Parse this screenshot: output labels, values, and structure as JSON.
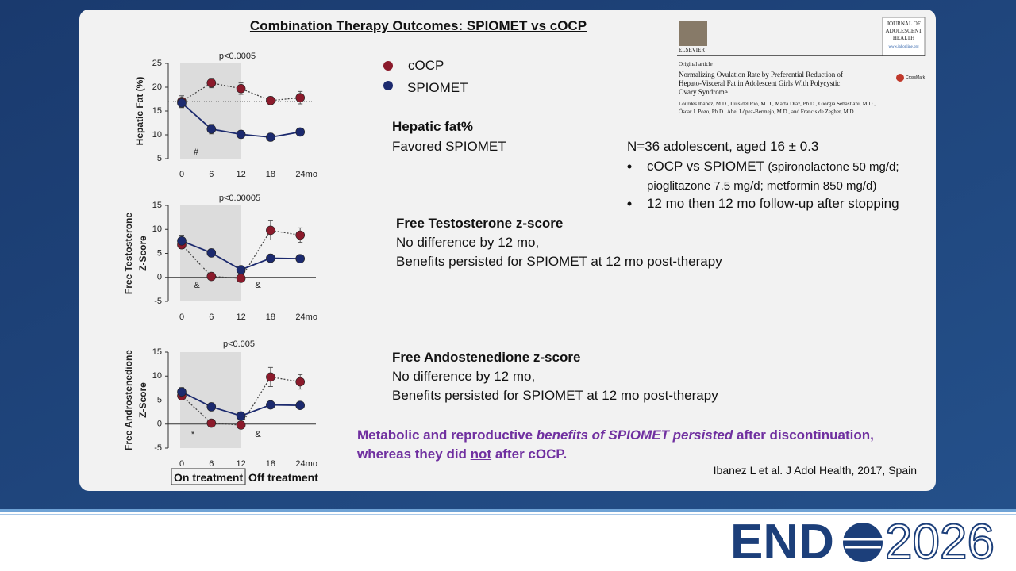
{
  "slide": {
    "title": "Combination Therapy Outcomes: SPIOMET vs cOCP",
    "hepatic": {
      "heading": "Hepatic fat%",
      "lines": [
        "Favored SPIOMET"
      ]
    },
    "testosterone": {
      "heading": "Free Testosterone z-score",
      "lines": [
        "No difference by 12 mo,",
        "Benefits persisted for SPIOMET at 12 mo post-therapy"
      ]
    },
    "androstenedione": {
      "heading": "Free Andostenedione z-score",
      "lines": [
        "No difference by 12 mo,",
        "Benefits persisted for SPIOMET at 12 mo post-therapy"
      ]
    },
    "study": {
      "intro": "N=36 adolescent, aged 16 ± 0.3",
      "bullets": [
        {
          "lead": "cOCP vs SPIOMET ",
          "detail": "(spironolactone 50 mg/d; pioglitazone 7.5 mg/d; metformin 850 mg/d)"
        },
        {
          "lead": "12 mo then 12 mo follow-up after stopping",
          "detail": ""
        }
      ]
    },
    "conclusion": [
      [
        {
          "text": "Metabolic and reproductive ",
          "style": "normal"
        },
        {
          "text": "benefits of SPIOMET persisted",
          "style": "italic"
        },
        {
          "text": " after discontinuation,",
          "style": "normal"
        }
      ],
      [
        {
          "text": "whereas they did ",
          "style": "normal"
        },
        {
          "text": "not",
          "style": "underline"
        },
        {
          "text": " after cOCP.",
          "style": "normal"
        }
      ]
    ],
    "citation": "Ibanez L et al. J Adol Health, 2017, Spain",
    "phases": [
      "On treatment",
      "Off treatment"
    ],
    "article": {
      "publisher": "ELSEVIER",
      "journal": [
        "JOURNAL OF",
        "ADOLESCENT",
        "HEALTH"
      ],
      "url": "www.jahonline.org",
      "kind": "Original article",
      "title": [
        "Normalizing Ovulation Rate by Preferential Reduction of",
        "Hepato-Visceral Fat in Adolescent Girls With Polycystic",
        "Ovary Syndrome"
      ],
      "authors": [
        "Lourdes Ibáñez, M.D., Luis del Río, M.D., Marta Díaz, Ph.D., Giorgia Sebastiani, M.D.,",
        "Óscar J. Pozo, Ph.D., Abel López-Bermejo, M.D., and Francis de Zegher, M.D."
      ],
      "badge": "CrossMark"
    },
    "logo": {
      "left": "END",
      "right": "2026"
    }
  },
  "chart_data": [
    {
      "type": "line",
      "ylabel": [
        "Hepatic Fat (%)"
      ],
      "categories": [
        "0",
        "6",
        "12",
        "18",
        "24mo"
      ],
      "ylim": [
        5,
        25
      ],
      "yticks": [
        5,
        10,
        15,
        20,
        25
      ],
      "reference_line": 17,
      "annotations": [
        "p<0.0005",
        "#"
      ],
      "series": [
        {
          "name": "cOCP",
          "color": "#8b1a2b",
          "line_style": "dotted",
          "values": [
            17,
            20.9,
            19.7,
            17.2,
            17.8
          ],
          "errors": [
            1.2,
            1,
            1.2,
            0.8,
            1.3
          ]
        },
        {
          "name": "SPIOMET",
          "color": "#1c2a6e",
          "line_style": "solid",
          "values": [
            16.7,
            11.2,
            10.1,
            9.5,
            10.6
          ],
          "errors": [
            1,
            1,
            0.8,
            0.8,
            0.6
          ]
        }
      ]
    },
    {
      "type": "line",
      "ylabel": [
        "Free Testosterone",
        "Z-Score"
      ],
      "categories": [
        "0",
        "6",
        "12",
        "18",
        "24mo"
      ],
      "ylim": [
        -5,
        15
      ],
      "yticks": [
        -5,
        0,
        5,
        10,
        15
      ],
      "annotations": [
        "p<0.00005",
        "&",
        "&"
      ],
      "series": [
        {
          "name": "cOCP",
          "color": "#8b1a2b",
          "line_style": "dotted",
          "values": [
            6.8,
            0.2,
            -0.2,
            9.8,
            8.8
          ],
          "errors": [
            0.8,
            0.4,
            0.4,
            2,
            1.5
          ]
        },
        {
          "name": "SPIOMET",
          "color": "#1c2a6e",
          "line_style": "solid",
          "values": [
            7.6,
            5.1,
            1.6,
            4,
            3.9
          ],
          "errors": [
            1.2,
            0.8,
            0.5,
            0.8,
            0.6
          ]
        }
      ]
    },
    {
      "type": "line",
      "ylabel": [
        "Free Androstenedione",
        "Z-Score"
      ],
      "categories": [
        "0",
        "6",
        "12",
        "18",
        "24mo"
      ],
      "ylim": [
        -5,
        15
      ],
      "yticks": [
        -5,
        0,
        5,
        10,
        15
      ],
      "annotations": [
        "p<0.005",
        "*",
        "&"
      ],
      "series": [
        {
          "name": "cOCP",
          "color": "#8b1a2b",
          "line_style": "dotted",
          "values": [
            5.9,
            0.2,
            -0.2,
            9.8,
            8.8
          ],
          "errors": [
            0.8,
            0.4,
            0.4,
            2,
            1.5
          ]
        },
        {
          "name": "SPIOMET",
          "color": "#1c2a6e",
          "line_style": "solid",
          "values": [
            6.7,
            3.6,
            1.7,
            4,
            3.9
          ],
          "errors": [
            0.9,
            0.8,
            0.5,
            0.7,
            0.6
          ]
        }
      ]
    }
  ]
}
